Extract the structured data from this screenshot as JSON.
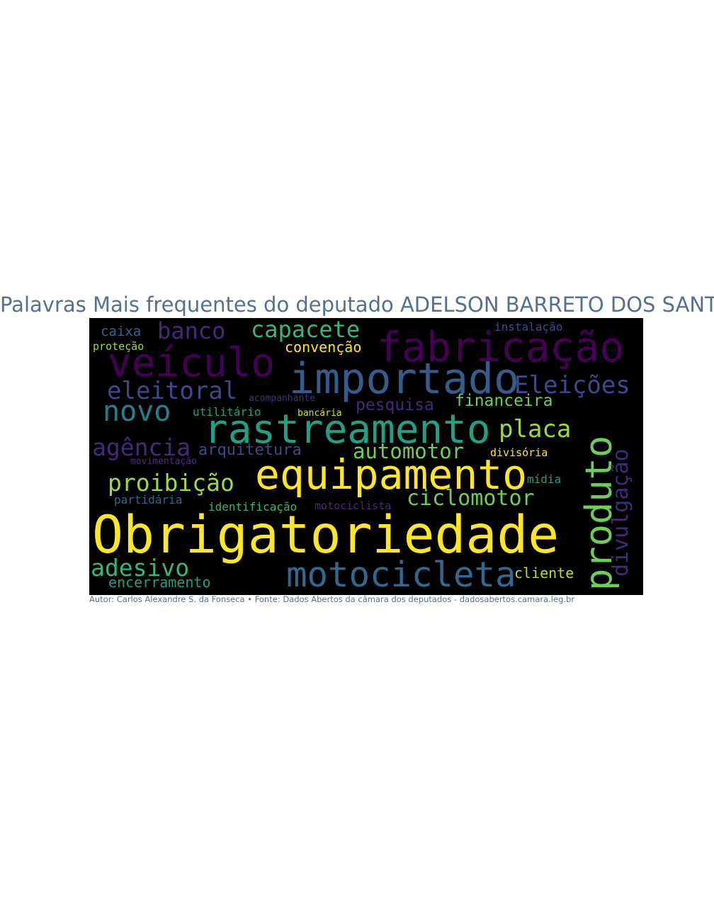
{
  "title": "Palavras Mais frequentes do deputado ADELSON BARRETO DOS SANTOS",
  "caption": "Autor: Carlos Alexandre S. da Fonseca • Fonte: Dados Abertos da câmara dos deputados - dadosabertos.camara.leg.br",
  "colors": {
    "background": "#000000",
    "title_text": "#56718f",
    "palette": [
      "#fde725",
      "#a0da39",
      "#4ac16d",
      "#1fa187",
      "#277f8e",
      "#365c8d",
      "#46327e",
      "#440154"
    ]
  },
  "words": [
    {
      "text": "Obrigatoriedade",
      "color": "#fde725"
    },
    {
      "text": "equipamento",
      "color": "#fde725"
    },
    {
      "text": "rastreamento",
      "color": "#1fa187"
    },
    {
      "text": "importado",
      "color": "#365c8d"
    },
    {
      "text": "fabricação",
      "color": "#440154"
    },
    {
      "text": "veículo",
      "color": "#440154"
    },
    {
      "text": "motocicleta",
      "color": "#31688e"
    },
    {
      "text": "produto",
      "color": "#6ece58"
    },
    {
      "text": "novo",
      "color": "#277f8e"
    },
    {
      "text": "eleitoral",
      "color": "#3e4989"
    },
    {
      "text": "Eleições",
      "color": "#3e4989"
    },
    {
      "text": "placa",
      "color": "#a0da39"
    },
    {
      "text": "ciclomotor",
      "color": "#6ece58"
    },
    {
      "text": "automotor",
      "color": "#6ece58"
    },
    {
      "text": "capacete",
      "color": "#35b779"
    },
    {
      "text": "banco",
      "color": "#482878"
    },
    {
      "text": "proibição",
      "color": "#a0da39"
    },
    {
      "text": "agência",
      "color": "#482878"
    },
    {
      "text": "adesivo",
      "color": "#35b779"
    },
    {
      "text": "divulgação",
      "color": "#482878"
    },
    {
      "text": "arquitetura",
      "color": "#3e4989"
    },
    {
      "text": "financeira",
      "color": "#6ece58"
    },
    {
      "text": "pesquisa",
      "color": "#482878"
    },
    {
      "text": "cliente",
      "color": "#b5de2b"
    },
    {
      "text": "encerramento",
      "color": "#1f9e89"
    },
    {
      "text": "convenção",
      "color": "#fde725"
    },
    {
      "text": "caixa",
      "color": "#31688e"
    },
    {
      "text": "proteção",
      "color": "#a0da39"
    },
    {
      "text": "instalação",
      "color": "#3e4989"
    },
    {
      "text": "utilitário",
      "color": "#1f9e89"
    },
    {
      "text": "identificação",
      "color": "#35b779"
    },
    {
      "text": "partidária",
      "color": "#31688e"
    },
    {
      "text": "mídia",
      "color": "#1f9e89"
    },
    {
      "text": "divisória",
      "color": "#fde725"
    },
    {
      "text": "motociclista",
      "color": "#482878"
    },
    {
      "text": "movimentação",
      "color": "#46327e"
    },
    {
      "text": "bancária",
      "color": "#d8e219"
    },
    {
      "text": "acompanhante",
      "color": "#46327e"
    }
  ]
}
